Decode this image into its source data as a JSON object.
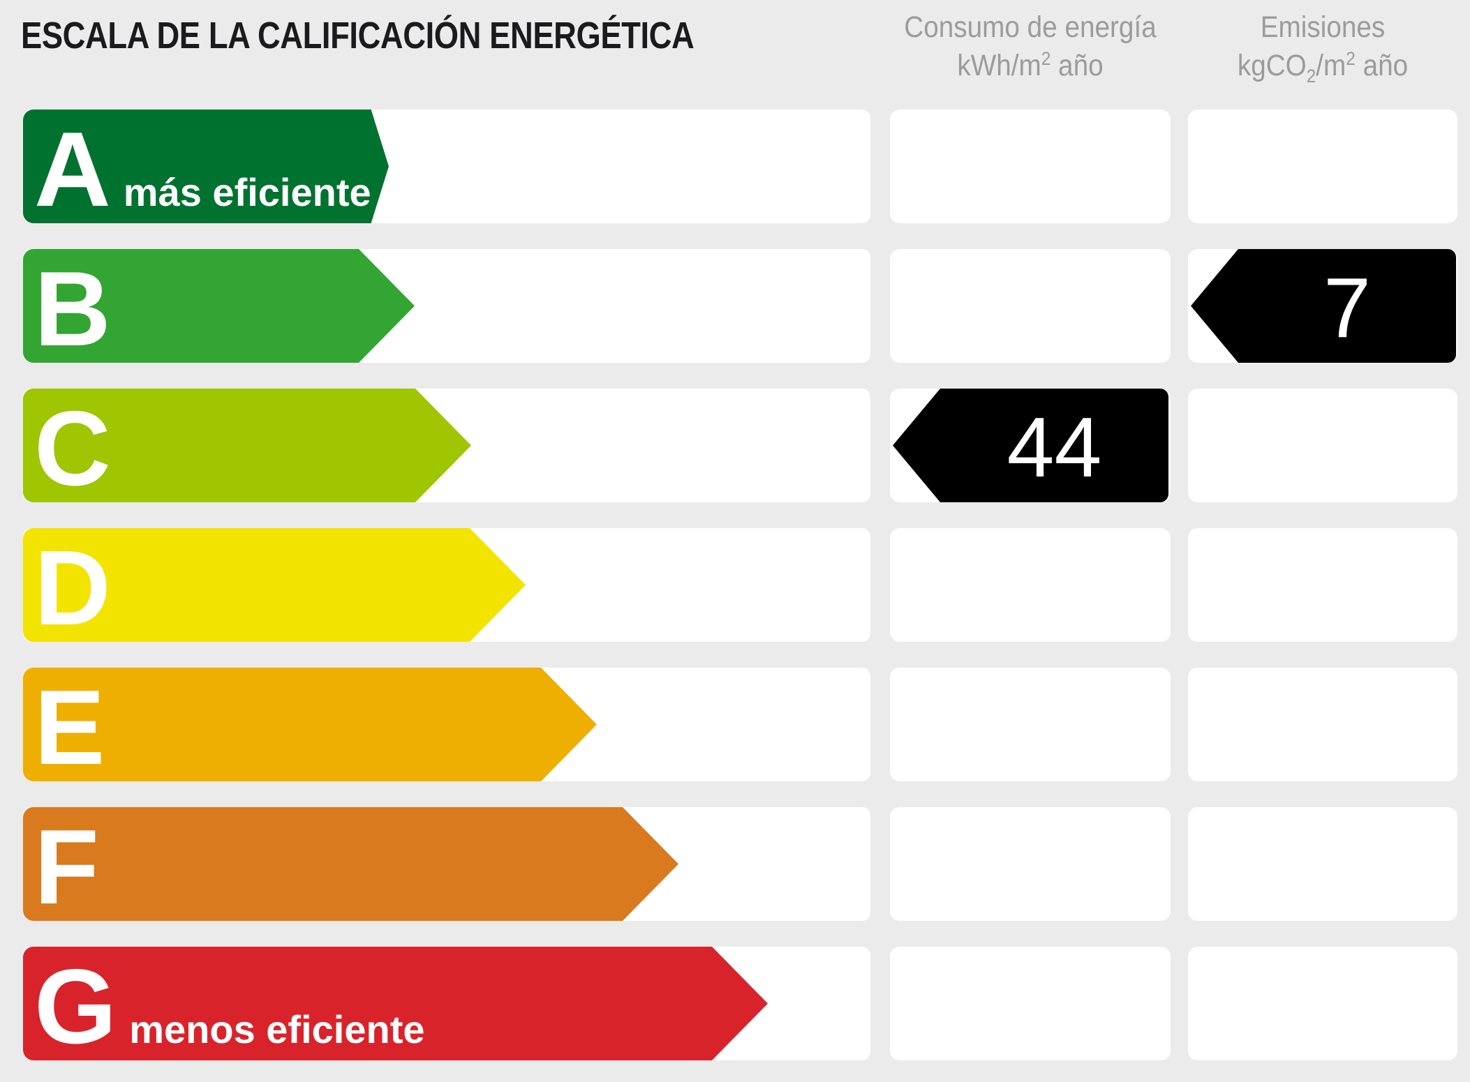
{
  "title": "ESCALA DE LA CALIFICACIÓN ENERGÉTICA",
  "columns": {
    "consumo": {
      "title": "Consumo de energía",
      "unit": {
        "pre": "kWh/m",
        "sup": "2",
        "post": " año"
      }
    },
    "emisiones": {
      "title": "Emisiones",
      "unit": {
        "pre": "kgCO",
        "sub": "2",
        "mid": "/m",
        "sup": "2",
        "post": " año"
      }
    }
  },
  "rows": [
    {
      "grade": "A",
      "label": "más eficiente",
      "color": "#00722F",
      "arrow_len": 524
    },
    {
      "grade": "B",
      "color": "#33A532",
      "arrow_len": 561
    },
    {
      "grade": "C",
      "color": "#A0C501",
      "arrow_len": 642
    },
    {
      "grade": "D",
      "color": "#F3E400",
      "arrow_len": 720
    },
    {
      "grade": "E",
      "color": "#EEAF00",
      "arrow_len": 822
    },
    {
      "grade": "F",
      "color": "#D97A1E",
      "arrow_len": 939
    },
    {
      "grade": "G",
      "label": "menos eficiente",
      "color": "#D9232B",
      "arrow_len": 1067
    }
  ],
  "ratings": {
    "consumo": {
      "grade": "C",
      "value": "44"
    },
    "emisiones": {
      "grade": "B",
      "value": "7"
    }
  },
  "colors": {
    "background": "#EBEBEB",
    "box_background": "#FFFFFF",
    "value_arrow": "#000000",
    "header_text": "#9B9B9B",
    "title_text": "#1B1B1D"
  },
  "chart_data": {
    "type": "bar",
    "title": "ESCALA DE LA CALIFICACIÓN ENERGÉTICA",
    "categories": [
      "A",
      "B",
      "C",
      "D",
      "E",
      "F",
      "G"
    ],
    "series": [
      {
        "name": "longitud relativa de flecha (px)",
        "values": [
          524,
          561,
          642,
          720,
          822,
          939,
          1067
        ]
      }
    ],
    "bar_colors": [
      "#00722F",
      "#33A532",
      "#A0C501",
      "#F3E400",
      "#EEAF00",
      "#D97A1E",
      "#D9232B"
    ],
    "annotations": [
      {
        "column": "Consumo de energía kWh/m² año",
        "grade": "C",
        "value": 44
      },
      {
        "column": "Emisiones kgCO₂/m² año",
        "grade": "B",
        "value": 7
      }
    ],
    "legend": false,
    "orientation": "horizontal"
  }
}
